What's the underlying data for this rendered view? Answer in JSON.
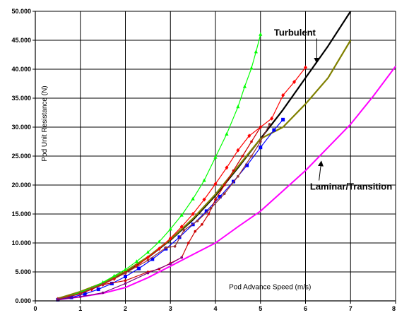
{
  "chart_data": {
    "type": "line",
    "title": "",
    "xlabel": "Pod Advance Speed (m/s)",
    "ylabel": "Pod Unit Resistance (N)",
    "xlim": [
      0,
      8
    ],
    "ylim": [
      0,
      50
    ],
    "x_ticks": [
      "0",
      "1",
      "2",
      "3",
      "4",
      "5",
      "6",
      "7",
      "8"
    ],
    "y_ticks": [
      "0.000",
      "5.000",
      "10.000",
      "15.000",
      "20.000",
      "25.000",
      "30.000",
      "35.000",
      "40.000",
      "45.000",
      "50.000"
    ],
    "grid": true,
    "legend": "none",
    "annotations": [
      {
        "text": "Turbulent",
        "points_to": "black curve",
        "label_at": [
          5.3,
          45.8
        ],
        "arrow_to": [
          6.25,
          41.1
        ]
      },
      {
        "text": "Laminar/Transition",
        "points_to": "magenta curve",
        "label_at": [
          6.1,
          19.2
        ],
        "arrow_to": [
          6.35,
          24.1
        ]
      }
    ],
    "series": [
      {
        "color": "#000000",
        "markers": "none",
        "width": 2.2,
        "x": [
          0.5,
          1,
          1.5,
          2,
          2.5,
          3,
          3.5,
          4,
          4.5,
          5,
          5.5,
          6,
          6.5,
          7
        ],
        "y": [
          0.4,
          1.5,
          3.0,
          5.0,
          7.5,
          10.5,
          14.0,
          18.2,
          23.0,
          28.0,
          33.0,
          38.5,
          44.0,
          50.0
        ]
      },
      {
        "color": "#ff00ff",
        "markers": "none",
        "width": 2,
        "x": [
          0.5,
          1,
          1.5,
          2,
          2.5,
          3,
          3.5,
          4,
          4.5,
          5,
          5.5,
          6,
          6.5,
          7,
          7.5,
          8
        ],
        "y": [
          0.2,
          0.7,
          1.3,
          2.3,
          4.0,
          6.0,
          8.0,
          10.0,
          12.8,
          15.5,
          19.0,
          22.5,
          26.5,
          30.5,
          35.3,
          40.5
        ]
      },
      {
        "color": "#808000",
        "markers": "none",
        "width": 2.2,
        "x": [
          0.5,
          1,
          1.5,
          2,
          2.5,
          3,
          3.5,
          4,
          4.5,
          5,
          5.5,
          6,
          6.5,
          7
        ],
        "y": [
          0.4,
          1.6,
          3.1,
          5.1,
          7.6,
          10.6,
          14.2,
          18.4,
          23.2,
          28.0,
          30.0,
          34.0,
          38.5,
          45.0
        ]
      },
      {
        "color": "#00ff00",
        "markers": "triangle",
        "x": [
          0.5,
          0.75,
          1,
          1.25,
          1.5,
          1.75,
          2,
          2.25,
          2.5,
          2.75,
          3,
          3.25,
          3.5,
          3.75,
          4,
          4.25,
          4.5,
          4.65,
          4.8,
          4.9,
          5
        ],
        "y": [
          0.3,
          0.8,
          1.5,
          2.2,
          3.2,
          4.3,
          5.4,
          6.8,
          8.4,
          10.2,
          12.4,
          14.8,
          17.6,
          20.8,
          24.8,
          28.8,
          33.5,
          37.0,
          40.2,
          43.0,
          46.0
        ]
      },
      {
        "color": "#ff0000",
        "markers": "diamond",
        "x": [
          0.5,
          0.75,
          1,
          1.25,
          1.5,
          1.75,
          2,
          2.25,
          2.5,
          2.75,
          3,
          3.25,
          3.5,
          3.75,
          4,
          4.25,
          4.5,
          4.75,
          5,
          5.25,
          5.5,
          5.75,
          6
        ],
        "y": [
          0.3,
          0.7,
          1.3,
          2.0,
          2.8,
          3.8,
          4.8,
          6.0,
          7.5,
          9.0,
          10.8,
          12.8,
          15.0,
          17.5,
          20.2,
          23.0,
          26.0,
          28.5,
          30.0,
          31.5,
          35.5,
          37.8,
          40.3
        ]
      },
      {
        "color": "#0000ff",
        "markers": "square",
        "x": [
          0.5,
          0.8,
          1.1,
          1.4,
          1.7,
          2.0,
          2.3,
          2.6,
          2.9,
          3.2,
          3.5,
          3.8,
          4.1,
          4.4,
          4.7,
          5.0,
          5.3,
          5.5
        ],
        "y": [
          0.2,
          0.6,
          1.2,
          2.0,
          3.0,
          4.2,
          5.6,
          7.2,
          9.0,
          11.0,
          13.2,
          15.5,
          18.0,
          20.6,
          23.4,
          26.5,
          29.5,
          31.3
        ]
      },
      {
        "color": "#cc0000",
        "markers": "circle",
        "x": [
          0.5,
          1,
          1.5,
          2,
          2.5,
          2.75,
          3,
          3.25,
          3.4,
          3.55,
          3.7,
          3.85,
          4,
          4.2,
          4.4,
          4.6,
          4.8,
          5
        ],
        "y": [
          0.3,
          1.2,
          2.8,
          3.5,
          5.0,
          5.5,
          6.5,
          7.5,
          10.0,
          12.0,
          13.2,
          15.0,
          17.5,
          20.0,
          22.5,
          25.0,
          27.5,
          30.0
        ]
      },
      {
        "color": "#993333",
        "markers": "circle",
        "x": [
          0.5,
          1,
          1.5,
          2,
          2.5,
          2.9,
          3.1,
          3.3,
          3.6,
          3.9,
          4.2,
          4.5,
          4.8,
          5.0,
          5.2
        ],
        "y": [
          0.3,
          1.3,
          2.9,
          4.8,
          7.0,
          9.2,
          9.4,
          12.2,
          13.8,
          16.0,
          18.5,
          21.5,
          25.0,
          27.5,
          30.5
        ]
      },
      {
        "color": "#800080",
        "markers": "circle",
        "x": [
          0.5,
          1,
          1.5,
          2,
          2.5,
          3,
          3.25
        ],
        "y": [
          0.2,
          0.7,
          1.4,
          3.0,
          4.8,
          6.4,
          7.5
        ]
      }
    ]
  }
}
